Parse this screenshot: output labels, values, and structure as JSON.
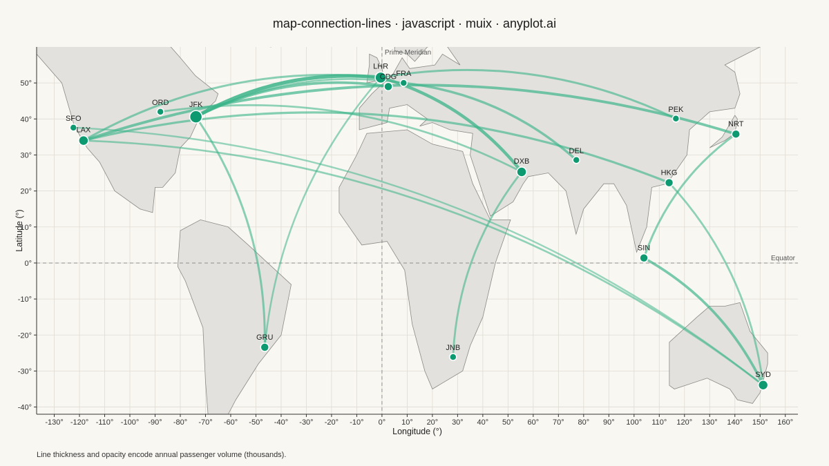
{
  "title": "map-connection-lines · javascript · muix · anyplot.ai",
  "caption": "Line thickness and opacity encode annual passenger volume (thousands).",
  "colors": {
    "background": "#f9f7f2",
    "land_fill": "#e2e1dd",
    "land_stroke": "#8a8a85",
    "grid": "#dedbd3",
    "route": "#3cb48a",
    "node": "#0e9a70",
    "node_stroke": "#ffffff"
  },
  "chart_data": {
    "type": "map-connection-lines",
    "xlabel": "Longitude (°)",
    "ylabel": "Latitude (°)",
    "xlim": [
      -137,
      165
    ],
    "ylim": [
      -42,
      60
    ],
    "x_ticks": [
      -130,
      -120,
      -110,
      -100,
      -90,
      -80,
      -70,
      -60,
      -50,
      -40,
      -30,
      -20,
      -10,
      0,
      10,
      20,
      30,
      40,
      50,
      60,
      70,
      80,
      90,
      100,
      110,
      120,
      130,
      140,
      150,
      160
    ],
    "x_tick_labels": [
      "-130°",
      "-120°",
      "-110°",
      "-100°",
      "-90°",
      "-80°",
      "-70°",
      "-60°",
      "-50°",
      "-40°",
      "-30°",
      "-20°",
      "-10°",
      "0°",
      "10°",
      "20°",
      "30°",
      "40°",
      "50°",
      "60°",
      "70°",
      "80°",
      "90°",
      "100°",
      "110°",
      "120°",
      "130°",
      "140°",
      "150°",
      "160°"
    ],
    "y_ticks": [
      50,
      40,
      30,
      20,
      10,
      0,
      -10,
      -20,
      -30,
      -40
    ],
    "y_tick_labels": [
      "50°",
      "40°",
      "30°",
      "20°",
      "10°",
      "0°",
      "-10°",
      "-20°",
      "-30°",
      "-40°"
    ],
    "grid": true,
    "reference_lines": [
      {
        "name": "Prime Meridian",
        "axis": "x",
        "value": 0
      },
      {
        "name": "Equator",
        "axis": "y",
        "value": 0
      }
    ],
    "cities": [
      {
        "code": "SFO",
        "lon": -122.4,
        "lat": 37.6,
        "size": 5
      },
      {
        "code": "LAX",
        "lon": -118.4,
        "lat": 34.0,
        "size": 7
      },
      {
        "code": "ORD",
        "lon": -87.9,
        "lat": 42.0,
        "size": 5
      },
      {
        "code": "JFK",
        "lon": -73.8,
        "lat": 40.6,
        "size": 9
      },
      {
        "code": "GRU",
        "lon": -46.5,
        "lat": -23.4,
        "size": 6
      },
      {
        "code": "LHR",
        "lon": -0.5,
        "lat": 51.5,
        "size": 8
      },
      {
        "code": "CDG",
        "lon": 2.5,
        "lat": 49.0,
        "size": 6
      },
      {
        "code": "FRA",
        "lon": 8.6,
        "lat": 50.0,
        "size": 5
      },
      {
        "code": "DXB",
        "lon": 55.4,
        "lat": 25.3,
        "size": 7
      },
      {
        "code": "DEL",
        "lon": 77.1,
        "lat": 28.6,
        "size": 5
      },
      {
        "code": "JNB",
        "lon": 28.2,
        "lat": -26.1,
        "size": 5
      },
      {
        "code": "PEK",
        "lon": 116.6,
        "lat": 40.1,
        "size": 5
      },
      {
        "code": "NRT",
        "lon": 140.4,
        "lat": 35.8,
        "size": 6
      },
      {
        "code": "HKG",
        "lon": 113.9,
        "lat": 22.3,
        "size": 6
      },
      {
        "code": "SIN",
        "lon": 103.9,
        "lat": 1.4,
        "size": 6
      },
      {
        "code": "SYD",
        "lon": 151.2,
        "lat": -33.9,
        "size": 7
      }
    ],
    "routes": [
      {
        "from": "JFK",
        "to": "LHR",
        "volume": 4.0
      },
      {
        "from": "JFK",
        "to": "CDG",
        "volume": 2.5
      },
      {
        "from": "JFK",
        "to": "FRA",
        "volume": 1.6
      },
      {
        "from": "LAX",
        "to": "LHR",
        "volume": 1.8
      },
      {
        "from": "ORD",
        "to": "DXB",
        "volume": 1.6
      },
      {
        "from": "JFK",
        "to": "GRU",
        "volume": 1.8
      },
      {
        "from": "LAX",
        "to": "NRT",
        "volume": 2.6
      },
      {
        "from": "LAX",
        "to": "HKG",
        "volume": 2.0
      },
      {
        "from": "LAX",
        "to": "SYD",
        "volume": 1.5
      },
      {
        "from": "SFO",
        "to": "SYD",
        "volume": 1.2
      },
      {
        "from": "LHR",
        "to": "DXB",
        "volume": 3.2
      },
      {
        "from": "LHR",
        "to": "PEK",
        "volume": 1.8
      },
      {
        "from": "FRA",
        "to": "DEL",
        "volume": 2.2
      },
      {
        "from": "LHR",
        "to": "GRU",
        "volume": 1.3
      },
      {
        "from": "DXB",
        "to": "JNB",
        "volume": 1.6
      },
      {
        "from": "SIN",
        "to": "SYD",
        "volume": 2.5
      },
      {
        "from": "NRT",
        "to": "SIN",
        "volume": 1.8
      },
      {
        "from": "HKG",
        "to": "SYD",
        "volume": 1.6
      }
    ]
  },
  "land": [
    {
      "name": "North America",
      "points": [
        [
          -137,
          58
        ],
        [
          -127,
          50
        ],
        [
          -122,
          38
        ],
        [
          -117,
          32
        ],
        [
          -112,
          28
        ],
        [
          -106,
          20
        ],
        [
          -96,
          15
        ],
        [
          -91,
          14
        ],
        [
          -90,
          21
        ],
        [
          -87,
          21
        ],
        [
          -82,
          25
        ],
        [
          -80,
          32
        ],
        [
          -76,
          35
        ],
        [
          -72,
          41
        ],
        [
          -66,
          45
        ],
        [
          -65,
          47
        ],
        [
          -74,
          52
        ],
        [
          -80,
          57
        ],
        [
          -85,
          61
        ],
        [
          -137,
          61
        ]
      ]
    },
    {
      "name": "South America",
      "points": [
        [
          -80,
          9
        ],
        [
          -72,
          12
        ],
        [
          -61,
          10
        ],
        [
          -53,
          5
        ],
        [
          -36,
          -6
        ],
        [
          -40,
          -20
        ],
        [
          -49,
          -28
        ],
        [
          -58,
          -38
        ],
        [
          -61,
          -42
        ],
        [
          -69,
          -42
        ],
        [
          -70,
          -33
        ],
        [
          -71,
          -18
        ],
        [
          -78,
          -5
        ],
        [
          -81,
          -1
        ],
        [
          -80,
          9
        ]
      ]
    },
    {
      "name": "Eurasia",
      "points": [
        [
          -9,
          43
        ],
        [
          -9,
          37
        ],
        [
          2,
          39
        ],
        [
          3,
          43
        ],
        [
          10,
          44
        ],
        [
          18,
          40
        ],
        [
          15,
          38
        ],
        [
          20,
          39
        ],
        [
          27,
          37
        ],
        [
          36,
          36
        ],
        [
          35,
          30
        ],
        [
          43,
          13
        ],
        [
          52,
          17
        ],
        [
          56,
          22
        ],
        [
          58,
          24
        ],
        [
          66,
          25
        ],
        [
          73,
          20
        ],
        [
          77,
          8
        ],
        [
          80,
          15
        ],
        [
          88,
          22
        ],
        [
          92,
          22
        ],
        [
          97,
          16
        ],
        [
          101,
          3
        ],
        [
          105,
          10
        ],
        [
          107,
          21
        ],
        [
          113,
          22
        ],
        [
          121,
          30
        ],
        [
          122,
          37
        ],
        [
          130,
          42
        ],
        [
          140,
          43
        ],
        [
          142,
          47
        ],
        [
          140,
          53
        ],
        [
          136,
          55
        ],
        [
          150,
          60
        ],
        [
          120,
          61
        ],
        [
          60,
          61
        ],
        [
          30,
          61
        ],
        [
          26,
          60
        ],
        [
          31,
          55
        ],
        [
          24,
          58
        ],
        [
          21,
          55
        ],
        [
          11,
          54
        ],
        [
          8,
          57
        ],
        [
          4,
          52
        ],
        [
          -1,
          49
        ],
        [
          -4,
          47
        ],
        [
          -9,
          43
        ]
      ]
    },
    {
      "name": "Scandinavia",
      "points": [
        [
          5,
          59
        ],
        [
          10,
          58
        ],
        [
          13,
          56
        ],
        [
          18,
          60
        ],
        [
          25,
          61
        ],
        [
          5,
          61
        ]
      ]
    },
    {
      "name": "Africa",
      "points": [
        [
          -17,
          21
        ],
        [
          -10,
          30
        ],
        [
          -6,
          36
        ],
        [
          10,
          37
        ],
        [
          20,
          33
        ],
        [
          32,
          31
        ],
        [
          36,
          22
        ],
        [
          43,
          12
        ],
        [
          51,
          12
        ],
        [
          45,
          0
        ],
        [
          40,
          -15
        ],
        [
          35,
          -23
        ],
        [
          32,
          -30
        ],
        [
          20,
          -35
        ],
        [
          17,
          -30
        ],
        [
          12,
          -17
        ],
        [
          9,
          -2
        ],
        [
          2,
          6
        ],
        [
          -8,
          5
        ],
        [
          -17,
          14
        ],
        [
          -17,
          21
        ]
      ]
    },
    {
      "name": "Great Britain",
      "points": [
        [
          -6,
          50
        ],
        [
          1,
          51
        ],
        [
          0,
          54
        ],
        [
          -2,
          57
        ],
        [
          -5,
          58
        ],
        [
          -5,
          55
        ],
        [
          -6,
          50
        ]
      ]
    },
    {
      "name": "Australia",
      "points": [
        [
          114,
          -22
        ],
        [
          114,
          -34
        ],
        [
          116,
          -35
        ],
        [
          129,
          -32
        ],
        [
          138,
          -35
        ],
        [
          141,
          -38
        ],
        [
          147,
          -39
        ],
        [
          150,
          -36
        ],
        [
          153,
          -28
        ],
        [
          153,
          -25
        ],
        [
          146,
          -19
        ],
        [
          142,
          -11
        ],
        [
          136,
          -12
        ],
        [
          130,
          -12
        ],
        [
          125,
          -15
        ],
        [
          114,
          -22
        ]
      ]
    },
    {
      "name": "Japan",
      "points": [
        [
          130,
          32
        ],
        [
          136,
          34
        ],
        [
          140,
          36
        ],
        [
          141,
          40
        ],
        [
          140,
          41
        ],
        [
          135,
          35
        ],
        [
          130,
          32
        ]
      ]
    },
    {
      "name": "Greenland",
      "points": [
        [
          -44,
          60
        ],
        [
          -40,
          62
        ],
        [
          -60,
          62
        ]
      ]
    }
  ],
  "axis_labels": {
    "x": "Longitude (°)",
    "y": "Latitude (°)"
  }
}
